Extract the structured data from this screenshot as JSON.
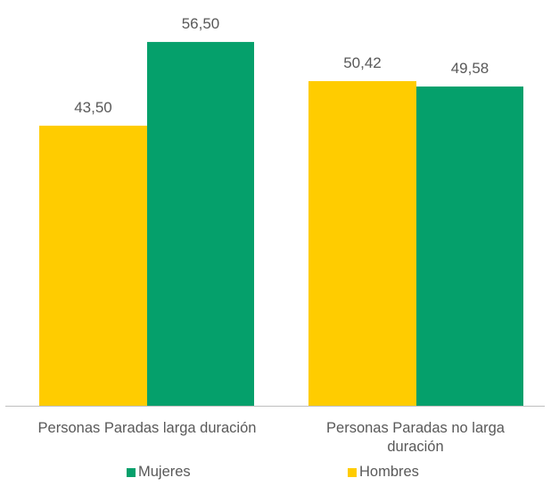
{
  "chart_data": {
    "type": "bar",
    "categories": [
      "Personas Paradas larga duración",
      "Personas Paradas no larga duración"
    ],
    "series": [
      {
        "name": "Hombres",
        "values": [
          43.5,
          50.42
        ],
        "value_labels": [
          "43,50",
          "50,42"
        ],
        "color": "#FFCC00"
      },
      {
        "name": "Mujeres",
        "values": [
          56.5,
          49.58
        ],
        "value_labels": [
          "56,50",
          "49,58"
        ],
        "color": "#05A06B"
      }
    ],
    "ylim": [
      0,
      60
    ],
    "grid": false,
    "legend_position": "bottom",
    "legend_order": [
      "Mujeres",
      "Hombres"
    ]
  }
}
